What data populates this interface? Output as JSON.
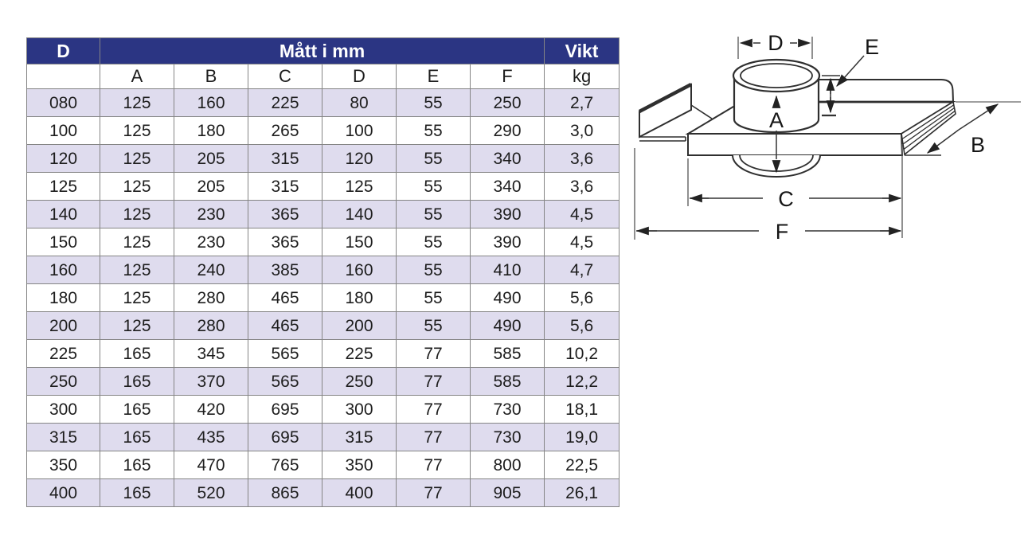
{
  "table": {
    "header": {
      "d": "D",
      "dims": "Mått i mm",
      "weight": "Vikt"
    },
    "subheader": [
      "",
      "A",
      "B",
      "C",
      "D",
      "E",
      "F",
      "kg"
    ],
    "rows": [
      [
        "080",
        "125",
        "160",
        "225",
        "80",
        "55",
        "250",
        "2,7"
      ],
      [
        "100",
        "125",
        "180",
        "265",
        "100",
        "55",
        "290",
        "3,0"
      ],
      [
        "120",
        "125",
        "205",
        "315",
        "120",
        "55",
        "340",
        "3,6"
      ],
      [
        "125",
        "125",
        "205",
        "315",
        "125",
        "55",
        "340",
        "3,6"
      ],
      [
        "140",
        "125",
        "230",
        "365",
        "140",
        "55",
        "390",
        "4,5"
      ],
      [
        "150",
        "125",
        "230",
        "365",
        "150",
        "55",
        "390",
        "4,5"
      ],
      [
        "160",
        "125",
        "240",
        "385",
        "160",
        "55",
        "410",
        "4,7"
      ],
      [
        "180",
        "125",
        "280",
        "465",
        "180",
        "55",
        "490",
        "5,6"
      ],
      [
        "200",
        "125",
        "280",
        "465",
        "200",
        "55",
        "490",
        "5,6"
      ],
      [
        "225",
        "165",
        "345",
        "565",
        "225",
        "77",
        "585",
        "10,2"
      ],
      [
        "250",
        "165",
        "370",
        "565",
        "250",
        "77",
        "585",
        "12,2"
      ],
      [
        "300",
        "165",
        "420",
        "695",
        "300",
        "77",
        "730",
        "18,1"
      ],
      [
        "315",
        "165",
        "435",
        "695",
        "315",
        "77",
        "730",
        "19,0"
      ],
      [
        "350",
        "165",
        "470",
        "765",
        "350",
        "77",
        "800",
        "22,5"
      ],
      [
        "400",
        "165",
        "520",
        "865",
        "400",
        "77",
        "905",
        "26,1"
      ]
    ],
    "colors": {
      "header_bg": "#2b3583",
      "header_text": "#ffffff",
      "row_alt_bg": "#dfdcee",
      "border": "#858585",
      "text": "#1d1d1d"
    }
  },
  "diagram": {
    "labels": {
      "a": "A",
      "b": "B",
      "c": "C",
      "d": "D",
      "e": "E",
      "f": "F"
    }
  }
}
